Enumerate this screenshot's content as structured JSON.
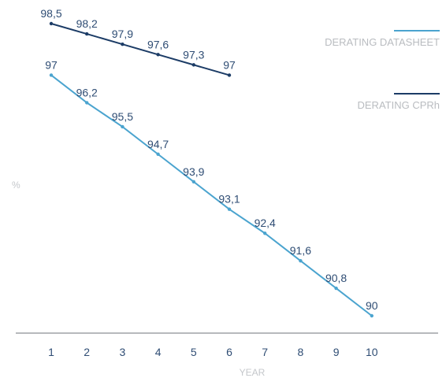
{
  "chart_data": {
    "type": "line",
    "title": "",
    "xlabel": "YEAR",
    "ylabel": "%",
    "x": [
      1,
      2,
      3,
      4,
      5,
      6,
      7,
      8,
      9,
      10
    ],
    "ylim": [
      88.8,
      99.1
    ],
    "grid": false,
    "legend_position": "top-right",
    "series": [
      {
        "name": "DERATING DATASHEET",
        "color": "#4ba4cf",
        "x": [
          1,
          2,
          3,
          4,
          5,
          6,
          7,
          8,
          9,
          10
        ],
        "values": [
          97,
          96.2,
          95.5,
          94.7,
          93.9,
          93.1,
          92.4,
          91.6,
          90.8,
          90
        ],
        "labels": [
          "97",
          "96,2",
          "95,5",
          "94,7",
          "93,9",
          "93,1",
          "92,4",
          "91,6",
          "90,8",
          "90"
        ]
      },
      {
        "name": "DERATING CPRh",
        "color": "#1c3c66",
        "x": [
          1,
          2,
          3,
          4,
          5,
          6
        ],
        "values": [
          98.5,
          98.2,
          97.9,
          97.6,
          97.3,
          97
        ],
        "labels": [
          "98,5",
          "98,2",
          "97,9",
          "97,6",
          "97,3",
          "97"
        ]
      }
    ],
    "x_tick_labels": [
      "1",
      "2",
      "3",
      "4",
      "5",
      "6",
      "7",
      "8",
      "9",
      "10"
    ],
    "colors": {
      "axis": "#6f7378",
      "tick_label": "#2f4d74",
      "data_label": "#2f4d74",
      "legend_text": "#b9bcc0",
      "axis_title": "#c4c7cb"
    }
  }
}
